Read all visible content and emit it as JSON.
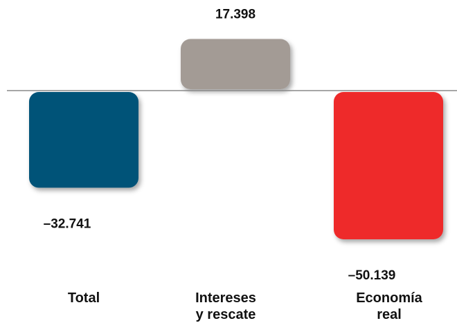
{
  "chart_data": {
    "type": "bar",
    "categories": [
      "Total",
      "Intereses y rescate",
      "Economía real"
    ],
    "category_lines": [
      [
        "Total"
      ],
      [
        "Intereses",
        "y rescate"
      ],
      [
        "Economía",
        "real"
      ]
    ],
    "values": [
      -32.741,
      17.398,
      -50.139
    ],
    "value_labels": [
      "–32.741",
      "17.398",
      "–50.139"
    ],
    "colors": [
      "#005378",
      "#A39B95",
      "#EE2A2B"
    ],
    "baseline_color": "#888888",
    "ylim": [
      -50.139,
      17.398
    ],
    "grid": false,
    "legend": "none"
  }
}
